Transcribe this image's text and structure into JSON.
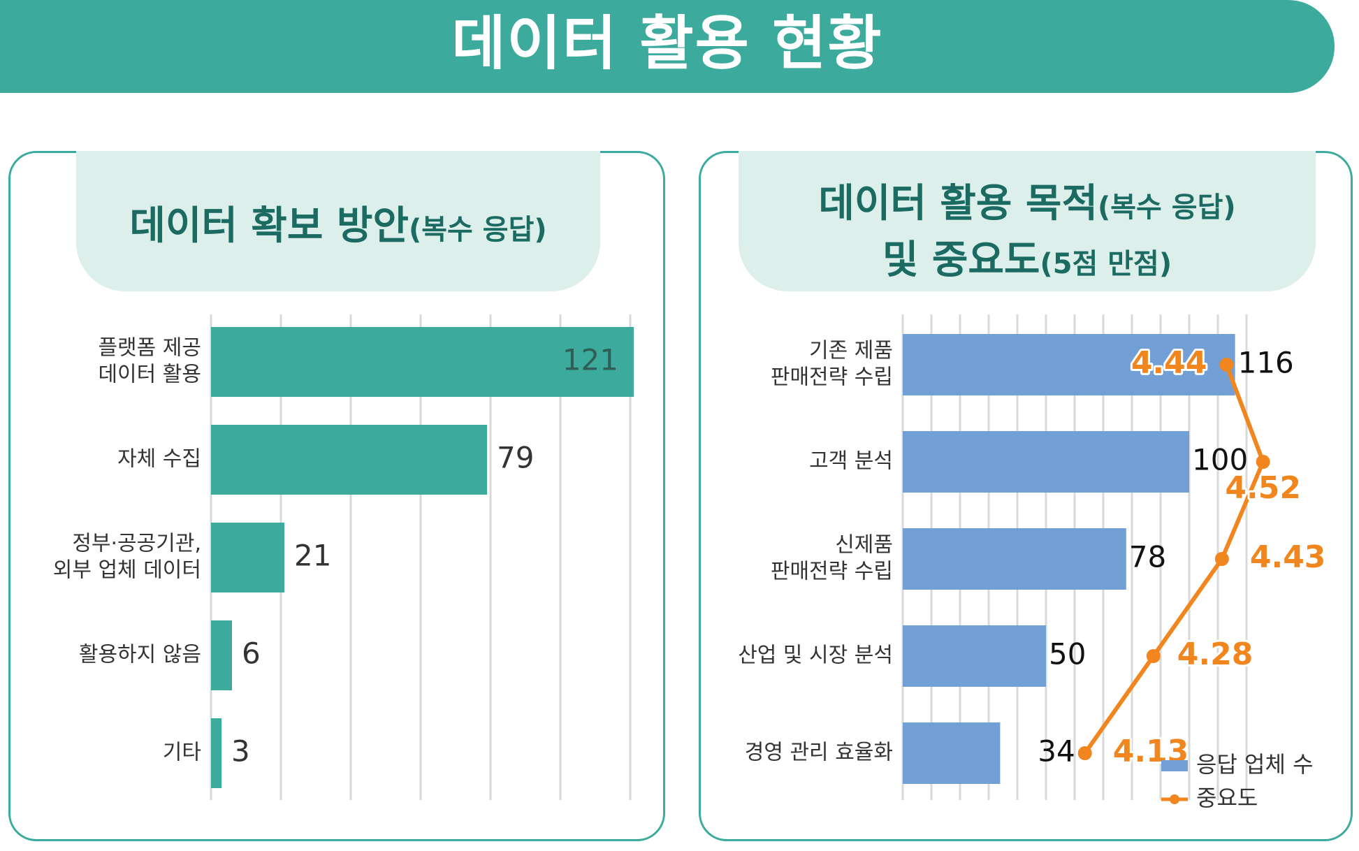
{
  "banner": {
    "title": "데이터 활용 현황"
  },
  "left_panel": {
    "title_main": "데이터 확보 방안",
    "title_sub": "(복수 응답)"
  },
  "right_panel": {
    "title_line1_main": "데이터 활용 목적",
    "title_line1_sub": "(복수 응답)",
    "title_line2_main": "및 중요도",
    "title_line2_sub": "(5점 만점)"
  },
  "colors": {
    "teal": "#3cab9d",
    "blue_bar": "#72a0d6",
    "orange_line": "#f0861d",
    "grid": "#d9d9d9"
  },
  "chart_data": [
    {
      "type": "bar",
      "orientation": "horizontal",
      "title": "데이터 확보 방안(복수 응답)",
      "categories": [
        [
          "플랫폼 제공",
          "데이터 활용"
        ],
        [
          "자체 수집"
        ],
        [
          "정부·공공기관,",
          "외부 업체 데이터"
        ],
        [
          "활용하지 않음"
        ],
        [
          "기타"
        ]
      ],
      "values": [
        121,
        79,
        21,
        6,
        3
      ],
      "xlim": [
        0,
        120
      ],
      "grid": "vertical"
    },
    {
      "type": "bar",
      "orientation": "horizontal",
      "title": "데이터 활용 목적(복수 응답) 및 중요도(5점 만점)",
      "categories": [
        [
          "기존 제품",
          "판매전략 수립"
        ],
        [
          "고객 분석"
        ],
        [
          "신제품",
          "판매전략 수립"
        ],
        [
          "산업 및 시장 분석"
        ],
        [
          "경영 관리 효율화"
        ]
      ],
      "series": [
        {
          "name": "응답 업체 수",
          "type": "bar",
          "values": [
            116,
            100,
            78,
            50,
            34
          ]
        },
        {
          "name": "중요도",
          "type": "line",
          "values": [
            4.44,
            4.52,
            4.43,
            4.28,
            4.13
          ],
          "value_labels": [
            "4.44",
            "4.52",
            "4.43",
            "4.28",
            "4.13"
          ]
        }
      ],
      "xlim": [
        0,
        120
      ],
      "importance_range": [
        3.8,
        4.6
      ],
      "legend": "bottom-right",
      "grid": "vertical"
    }
  ]
}
